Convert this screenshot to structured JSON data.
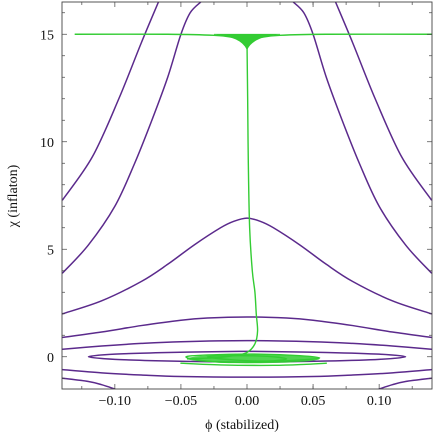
{
  "chart_data": {
    "type": "line",
    "title": "",
    "xlabel": "ϕ (stabilized)",
    "ylabel": "χ (inflaton)",
    "xlim": [
      -0.14,
      0.14
    ],
    "ylim": [
      -1.5,
      16.5
    ],
    "x_ticks": [
      {
        "value": -0.1,
        "label": "−0.10"
      },
      {
        "value": -0.05,
        "label": "−0.05"
      },
      {
        "value": 0.0,
        "label": "0.00"
      },
      {
        "value": 0.05,
        "label": "0.05"
      },
      {
        "value": 0.1,
        "label": "0.10"
      }
    ],
    "y_ticks": [
      {
        "value": 0,
        "label": "0"
      },
      {
        "value": 5,
        "label": "5"
      },
      {
        "value": 10,
        "label": "10"
      },
      {
        "value": 15,
        "label": "15"
      }
    ],
    "grid": false,
    "legend": "none",
    "colors": {
      "contour": "#5b2a8c",
      "trajectory": "#33cc33",
      "frame": "#444444"
    },
    "series": [
      {
        "kind": "contour",
        "x": [
          -0.1395,
          -0.117,
          -0.097,
          -0.08,
          -0.067
        ],
        "y": [
          7.3,
          9.3,
          12.0,
          14.6,
          16.5
        ]
      },
      {
        "kind": "contour",
        "x": [
          0.067,
          0.08,
          0.097,
          0.117,
          0.1395
        ],
        "y": [
          16.5,
          14.6,
          12.0,
          9.3,
          7.3
        ]
      },
      {
        "kind": "contour",
        "x": [
          -0.1395,
          -0.12,
          -0.1,
          -0.085,
          -0.072,
          -0.06,
          -0.05,
          -0.043,
          -0.035
        ],
        "y": [
          3.9,
          5.2,
          7.0,
          9.0,
          11.0,
          13.0,
          15.0,
          16.0,
          16.5
        ]
      },
      {
        "kind": "contour",
        "x": [
          0.035,
          0.043,
          0.05,
          0.06,
          0.072,
          0.085,
          0.1,
          0.12,
          0.1395
        ],
        "y": [
          16.5,
          16.0,
          15.0,
          13.0,
          11.0,
          9.0,
          7.0,
          5.2,
          3.9
        ]
      },
      {
        "kind": "contour",
        "x": [
          -0.1395,
          -0.11,
          -0.08,
          -0.06,
          -0.04,
          -0.02,
          -0.01,
          0.0,
          0.01,
          0.02,
          0.04,
          0.06,
          0.08,
          0.11,
          0.1395
        ],
        "y": [
          2.0,
          2.6,
          3.5,
          4.3,
          5.2,
          6.0,
          6.3,
          6.45,
          6.3,
          6.0,
          5.2,
          4.3,
          3.5,
          2.6,
          2.0
        ]
      },
      {
        "kind": "contour",
        "x": [
          -0.1395,
          -0.11,
          -0.08,
          -0.05,
          -0.03,
          0.0,
          0.03,
          0.05,
          0.08,
          0.11,
          0.1395
        ],
        "y": [
          0.9,
          1.15,
          1.45,
          1.7,
          1.8,
          1.85,
          1.8,
          1.7,
          1.45,
          1.15,
          0.9
        ]
      },
      {
        "kind": "contour",
        "x": [
          -0.1395,
          -0.11,
          -0.08,
          -0.05,
          0.0,
          0.05,
          0.08,
          0.11,
          0.1395
        ],
        "y": [
          0.35,
          0.5,
          0.62,
          0.7,
          0.75,
          0.7,
          0.62,
          0.5,
          0.35
        ]
      },
      {
        "kind": "contour",
        "x": [
          -0.1395,
          -0.11,
          -0.08,
          -0.05,
          0.0,
          0.05,
          0.08,
          0.11,
          0.1395
        ],
        "y": [
          -0.6,
          -0.75,
          -0.85,
          -0.92,
          -0.95,
          -0.92,
          -0.85,
          -0.75,
          -0.6
        ]
      },
      {
        "kind": "contour",
        "x": [
          -0.1395,
          -0.12,
          -0.11,
          -0.1
        ],
        "y": [
          -1.0,
          -1.15,
          -1.3,
          -1.5
        ]
      },
      {
        "kind": "contour",
        "x": [
          0.1,
          0.11,
          0.12,
          0.1395
        ],
        "y": [
          -1.5,
          -1.3,
          -1.15,
          -1.0
        ]
      },
      {
        "kind": "contour",
        "closed": true,
        "x": [
          -0.12,
          -0.1,
          -0.06,
          -0.02,
          0.0,
          0.02,
          0.06,
          0.1,
          0.12,
          0.1,
          0.06,
          0.02,
          0.0,
          -0.02,
          -0.06,
          -0.1
        ],
        "y": [
          0.0,
          0.12,
          0.2,
          0.24,
          0.25,
          0.24,
          0.2,
          0.12,
          0.0,
          -0.12,
          -0.2,
          -0.24,
          -0.25,
          -0.24,
          -0.2,
          -0.12
        ]
      },
      {
        "kind": "trajectory",
        "x": [
          -0.13,
          -0.06,
          -0.025,
          -0.01,
          -0.004,
          0.0,
          0.004,
          0.01,
          0.025,
          0.06,
          0.14
        ],
        "y": [
          15.0,
          15.0,
          14.95,
          14.85,
          14.75,
          14.6,
          14.75,
          14.85,
          14.95,
          15.0,
          15.0
        ]
      },
      {
        "kind": "trajectory",
        "x": [
          0.0,
          0.0005,
          0.001,
          0.002,
          0.004,
          0.006,
          0.007,
          0.008,
          0.006,
          0.0,
          -0.01,
          -0.025,
          -0.045
        ],
        "y": [
          14.6,
          12.0,
          9.0,
          6.0,
          4.0,
          3.0,
          2.0,
          1.2,
          0.6,
          0.2,
          0.05,
          -0.05,
          -0.1
        ]
      },
      {
        "kind": "trajectory",
        "closed": true,
        "x": [
          -0.045,
          -0.02,
          0.01,
          0.04,
          0.055,
          0.04,
          0.01,
          -0.02,
          -0.04
        ],
        "y": [
          0.02,
          0.1,
          0.12,
          0.05,
          -0.05,
          -0.15,
          -0.25,
          -0.25,
          -0.12
        ]
      },
      {
        "kind": "trajectory",
        "closed": true,
        "x": [
          -0.03,
          -0.01,
          0.015,
          0.03,
          0.015,
          -0.01
        ],
        "y": [
          0.0,
          0.05,
          0.02,
          -0.1,
          -0.2,
          -0.15
        ]
      },
      {
        "kind": "trajectory",
        "x": [
          -0.05,
          -0.02,
          0.02,
          0.045,
          0.06
        ],
        "y": [
          -0.3,
          -0.38,
          -0.4,
          -0.35,
          -0.3
        ]
      },
      {
        "kind": "trajectory_fan",
        "x_span": [
          -0.025,
          0.025
        ],
        "y_top": 15.0,
        "y_bottom": 14.3
      },
      {
        "kind": "trajectory_blob",
        "x_span": [
          -0.045,
          0.055
        ],
        "y_span": [
          -0.3,
          0.12
        ]
      }
    ]
  }
}
